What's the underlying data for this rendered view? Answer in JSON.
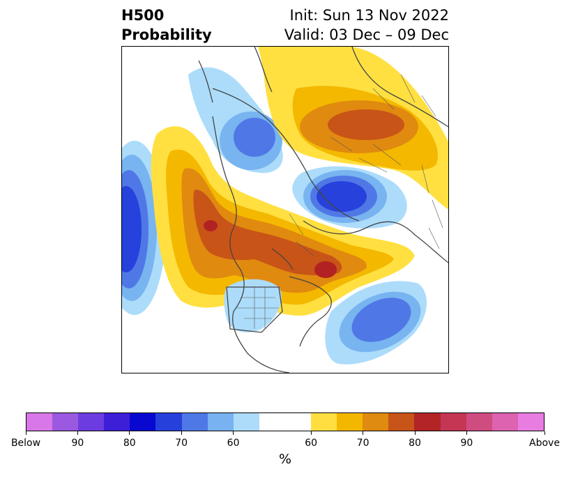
{
  "header": {
    "title_line1": "H500",
    "title_line2": "Probability",
    "init_text": "Init: Sun 13 Nov 2022",
    "valid_text": "Valid: 03 Dec – 09 Dec"
  },
  "map": {
    "below_levels": [
      "#acdcfa",
      "#78b4f0",
      "#4f78e6",
      "#2641dc",
      "#0508d2"
    ],
    "above_levels": [
      "#ffe040",
      "#f4b800",
      "#e08a10",
      "#c85418",
      "#b22222"
    ]
  },
  "colorbar": {
    "colors": [
      "#d878e8",
      "#9b58e0",
      "#6d3ce0",
      "#3e1fd8",
      "#0808d0",
      "#2640dc",
      "#4d78e6",
      "#78b2f0",
      "#acdcfa",
      "#ffffff",
      "#ffffff",
      "#ffdf40",
      "#f3b700",
      "#df8a10",
      "#c75418",
      "#b22426",
      "#c43654",
      "#cf4c80",
      "#dd62b0",
      "#e87ce0"
    ],
    "tick_labels": [
      "Below",
      "90",
      "80",
      "70",
      "60",
      "60",
      "70",
      "80",
      "90",
      "Above"
    ],
    "unit": "%"
  }
}
